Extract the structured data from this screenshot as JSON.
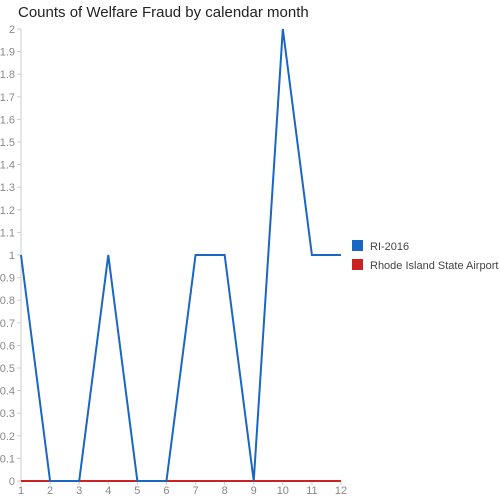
{
  "chart_data": {
    "type": "line",
    "title": "Counts of Welfare Fraud by calendar month",
    "xlabel": "",
    "ylabel": "",
    "x": [
      1,
      2,
      3,
      4,
      5,
      6,
      7,
      8,
      9,
      10,
      11,
      12
    ],
    "xlim": [
      1,
      12
    ],
    "ylim": [
      0,
      2
    ],
    "y_ticks": [
      "0",
      "0.1",
      "0.2",
      "0.3",
      "0.4",
      "0.5",
      "0.6",
      "0.7",
      "0.8",
      "0.9",
      "1",
      "1.1",
      "1.2",
      "1.3",
      "1.4",
      "1.5",
      "1.6",
      "1.7",
      "1.8",
      "1.9",
      "2"
    ],
    "x_ticks": [
      "1",
      "2",
      "3",
      "4",
      "5",
      "6",
      "7",
      "8",
      "9",
      "10",
      "11",
      "12"
    ],
    "grid": false,
    "legend_position": "right",
    "series": [
      {
        "name": "RI-2016",
        "color": "#1a66c4",
        "values": [
          1,
          0,
          0,
          1,
          0,
          0,
          1,
          1,
          0,
          2,
          1,
          1
        ]
      },
      {
        "name": "Rhode Island State Airport",
        "color": "#cc2222",
        "values": [
          0,
          0,
          0,
          0,
          0,
          0,
          0,
          0,
          0,
          0,
          0,
          0
        ]
      }
    ]
  }
}
